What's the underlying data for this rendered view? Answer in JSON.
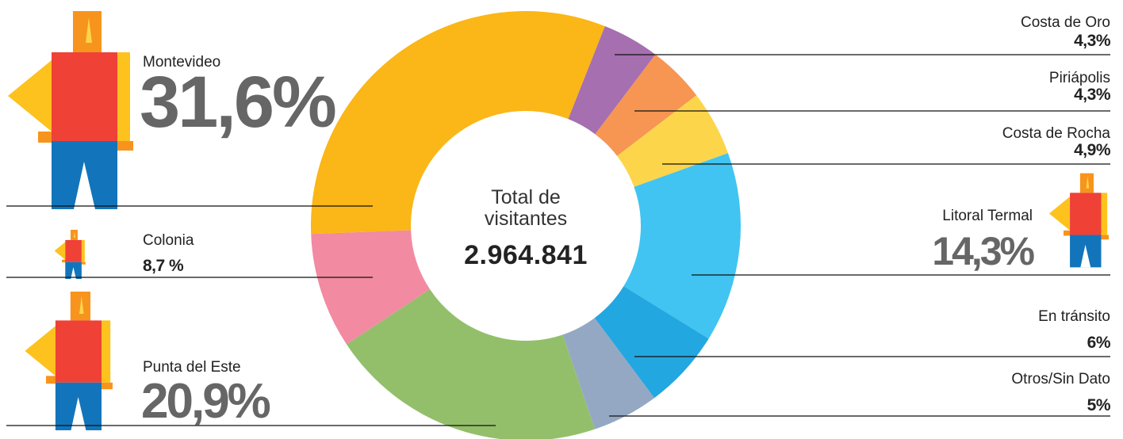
{
  "chart_data": {
    "type": "donut",
    "categories": [
      "Costa de Oro",
      "Piriápolis",
      "Costa de Rocha",
      "Litoral Termal",
      "En tránsito",
      "Otros/Sin Dato",
      "Punta del Este",
      "Colonia",
      "Montevideo"
    ],
    "values": [
      4.3,
      4.3,
      4.9,
      14.3,
      6,
      5,
      20.9,
      8.7,
      31.6
    ],
    "value_labels": [
      "4,3%",
      "4,3%",
      "4,9%",
      "14,3%",
      "6%",
      "5%",
      "20,9%",
      "8,7 %",
      "31,6%"
    ],
    "colors": [
      "#a56fb0",
      "#f79552",
      "#fdd54b",
      "#41c4f1",
      "#23a7e0",
      "#94a8c4",
      "#93bf6b",
      "#f28aa2",
      "#fbb617"
    ],
    "center_label": "Total de visitantes",
    "total": 2964841,
    "total_label": "2.964.841"
  }
}
